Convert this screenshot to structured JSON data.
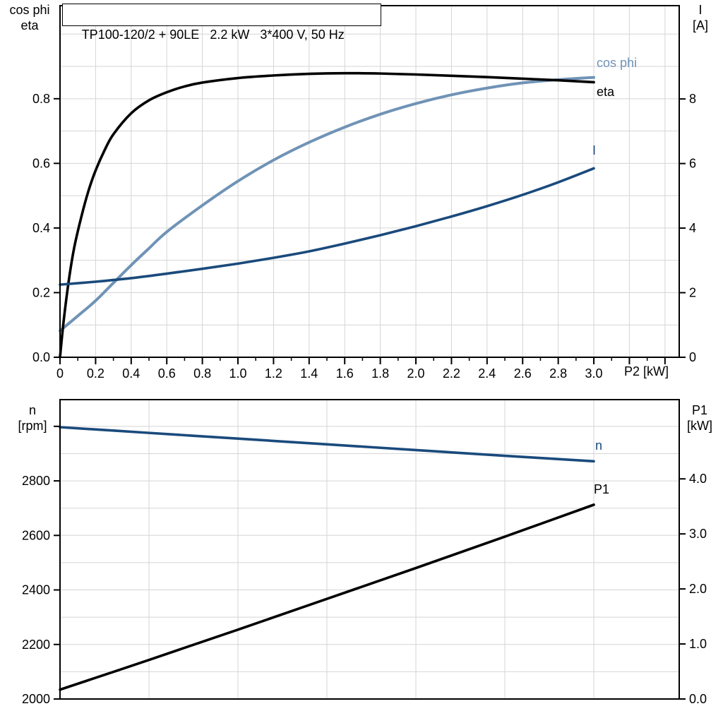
{
  "title": "TP100-120/2 + 90LE   2.2 kW   3*400 V, 50 Hz",
  "colors": {
    "black": "#000000",
    "dark_blue": "#1a4a7c",
    "light_blue": "#7093b6",
    "grid": "#d5d5d5",
    "frame": "#000000",
    "background": "#ffffff"
  },
  "chart_data": [
    {
      "type": "line",
      "title": "TP100-120/2 + 90LE   2.2 kW   3*400 V, 50 Hz",
      "legend_position": "right-inside",
      "grid": "on",
      "axes": {
        "x": {
          "label": "P2 [kW]",
          "min": 0,
          "max": 3.48,
          "grid_step": 0.2,
          "minor_tick_step": 0.1,
          "ticks": [
            {
              "v": 0.0,
              "label": "0"
            },
            {
              "v": 0.2,
              "label": "0.2"
            },
            {
              "v": 0.4,
              "label": "0.4"
            },
            {
              "v": 0.6,
              "label": "0.6"
            },
            {
              "v": 0.8,
              "label": "0.8"
            },
            {
              "v": 1.0,
              "label": "1.0"
            },
            {
              "v": 1.2,
              "label": "1.2"
            },
            {
              "v": 1.4,
              "label": "1.4"
            },
            {
              "v": 1.6,
              "label": "1.6"
            },
            {
              "v": 1.8,
              "label": "1.8"
            },
            {
              "v": 2.0,
              "label": "2.0"
            },
            {
              "v": 2.2,
              "label": "2.2"
            },
            {
              "v": 2.4,
              "label": "2.4"
            },
            {
              "v": 2.6,
              "label": "2.6"
            },
            {
              "v": 2.8,
              "label": "2.8"
            },
            {
              "v": 3.0,
              "label": "3.0"
            },
            {
              "v": 3.2,
              "label": ""
            },
            {
              "v": 3.4,
              "label": ""
            }
          ]
        },
        "y_left": {
          "title_line1": "cos phi",
          "title_line2": "eta",
          "min": 0,
          "max": 1.088,
          "grid_step": 0.1,
          "ticks": [
            {
              "v": 0.0,
              "label": "0.0"
            },
            {
              "v": 0.2,
              "label": "0.2"
            },
            {
              "v": 0.4,
              "label": "0.4"
            },
            {
              "v": 0.6,
              "label": "0.6"
            },
            {
              "v": 0.8,
              "label": "0.8"
            }
          ]
        },
        "y_right": {
          "title_line1": "I",
          "title_line2": "[A]",
          "min": 0,
          "max": 10.89,
          "ticks": [
            {
              "v": 0,
              "label": "0"
            },
            {
              "v": 2,
              "label": "2"
            },
            {
              "v": 4,
              "label": "4"
            },
            {
              "v": 6,
              "label": "6"
            },
            {
              "v": 8,
              "label": "8"
            }
          ]
        }
      },
      "series": [
        {
          "name": "cos phi",
          "axis": "left",
          "color": "#7093b6",
          "width": 4,
          "x": [
            0,
            0.1,
            0.2,
            0.3,
            0.4,
            0.5,
            0.6,
            0.8,
            1.0,
            1.2,
            1.4,
            1.6,
            1.8,
            2.0,
            2.2,
            2.4,
            2.6,
            2.8,
            3.0
          ],
          "y": [
            0.082,
            0.128,
            0.175,
            0.23,
            0.285,
            0.337,
            0.388,
            0.47,
            0.545,
            0.61,
            0.665,
            0.712,
            0.752,
            0.785,
            0.812,
            0.833,
            0.849,
            0.859,
            0.866
          ]
        },
        {
          "name": "eta",
          "axis": "left",
          "color": "#000000",
          "width": 3.6,
          "x": [
            0,
            0.02,
            0.05,
            0.08,
            0.12,
            0.16,
            0.2,
            0.25,
            0.3,
            0.4,
            0.5,
            0.6,
            0.7,
            0.8,
            1.0,
            1.2,
            1.4,
            1.6,
            1.8,
            2.0,
            2.2,
            2.4,
            2.6,
            2.8,
            3.0
          ],
          "y": [
            0,
            0.11,
            0.24,
            0.34,
            0.435,
            0.515,
            0.578,
            0.64,
            0.69,
            0.755,
            0.795,
            0.82,
            0.838,
            0.85,
            0.864,
            0.872,
            0.877,
            0.879,
            0.878,
            0.875,
            0.871,
            0.867,
            0.862,
            0.857,
            0.851
          ]
        },
        {
          "name": "I",
          "axis": "right",
          "color": "#1a4a7c",
          "width": 3.6,
          "x": [
            0,
            0.2,
            0.4,
            0.6,
            0.8,
            1.0,
            1.2,
            1.4,
            1.6,
            1.8,
            2.0,
            2.2,
            2.4,
            2.6,
            2.8,
            3.0
          ],
          "y": [
            2.25,
            2.34,
            2.45,
            2.59,
            2.74,
            2.9,
            3.08,
            3.28,
            3.52,
            3.78,
            4.06,
            4.36,
            4.68,
            5.03,
            5.42,
            5.85
          ]
        }
      ]
    },
    {
      "type": "line",
      "title": "",
      "legend_position": "right-inside",
      "grid": "on",
      "axes": {
        "x": {
          "label": "",
          "min": 0,
          "max": 3.48,
          "grid_step": 0.5,
          "minor_tick_step": 0,
          "ticks": []
        },
        "y_left": {
          "title_line1": "n",
          "title_line2": "[rpm]",
          "min": 2000,
          "max": 3098,
          "grid_step": 100,
          "ticks": [
            {
              "v": 2000,
              "label": "2000"
            },
            {
              "v": 2200,
              "label": "2200"
            },
            {
              "v": 2400,
              "label": "2400"
            },
            {
              "v": 2600,
              "label": "2600"
            },
            {
              "v": 2800,
              "label": "2800"
            },
            {
              "v": 3000,
              "label": ""
            }
          ]
        },
        "y_right": {
          "title_line1": "P1",
          "title_line2": "[kW]",
          "min": 0,
          "max": 5.44,
          "ticks": [
            {
              "v": 0.0,
              "label": "0.0"
            },
            {
              "v": 1.0,
              "label": "1.0"
            },
            {
              "v": 2.0,
              "label": "2.0"
            },
            {
              "v": 3.0,
              "label": "3.0"
            },
            {
              "v": 4.0,
              "label": "4.0"
            }
          ]
        }
      },
      "series": [
        {
          "name": "n",
          "axis": "left",
          "color": "#1a4a7c",
          "width": 3.6,
          "x": [
            0,
            0.5,
            1.0,
            1.5,
            2.0,
            2.5,
            3.0
          ],
          "y": [
            2997,
            2976,
            2955,
            2934,
            2913,
            2892,
            2872
          ]
        },
        {
          "name": "P1",
          "axis": "right",
          "color": "#000000",
          "width": 3.6,
          "x": [
            0,
            0.5,
            1.0,
            1.5,
            2.0,
            2.5,
            3.0
          ],
          "y": [
            0.17,
            0.71,
            1.26,
            1.82,
            2.38,
            2.95,
            3.53
          ]
        }
      ]
    }
  ]
}
